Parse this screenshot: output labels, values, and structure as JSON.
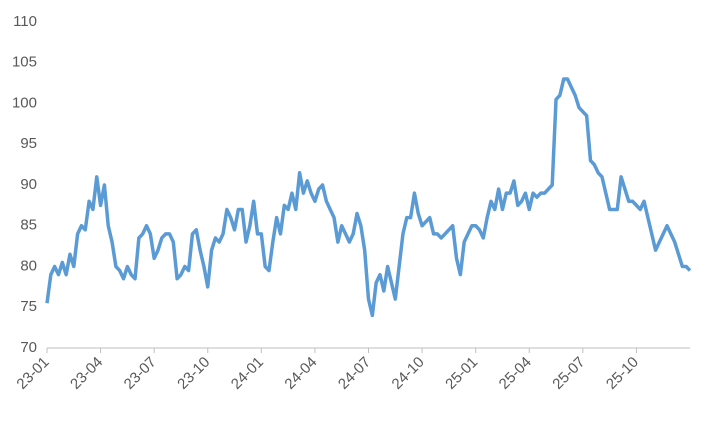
{
  "chart_data": {
    "type": "line",
    "categories": [
      "23-01",
      null,
      null,
      null,
      null,
      null,
      null,
      null,
      null,
      null,
      null,
      null,
      null,
      null,
      "23-04",
      null,
      null,
      null,
      null,
      null,
      null,
      null,
      null,
      null,
      null,
      null,
      null,
      null,
      "23-07",
      null,
      null,
      null,
      null,
      null,
      null,
      null,
      null,
      null,
      null,
      null,
      null,
      null,
      "23-10",
      null,
      null,
      null,
      null,
      null,
      null,
      null,
      null,
      null,
      null,
      null,
      null,
      null,
      "24-01",
      null,
      null,
      null,
      null,
      null,
      null,
      null,
      null,
      null,
      null,
      null,
      null,
      null,
      "24-04",
      null,
      null,
      null,
      null,
      null,
      null,
      null,
      null,
      null,
      null,
      null,
      null,
      null,
      "24-07",
      null,
      null,
      null,
      null,
      null,
      null,
      null,
      null,
      null,
      null,
      null,
      null,
      null,
      "24-10",
      null,
      null,
      null,
      null,
      null,
      null,
      null,
      null,
      null,
      null,
      null,
      null,
      null,
      "25-01",
      null,
      null,
      null,
      null,
      null,
      null,
      null,
      null,
      null,
      null,
      null,
      null,
      null,
      "25-04",
      null,
      null,
      null,
      null,
      null,
      null,
      null,
      null,
      null,
      null,
      null,
      null,
      null,
      "25-07",
      null,
      null,
      null,
      null,
      null,
      null,
      null,
      null,
      null,
      null,
      null,
      null,
      null,
      "25-10",
      null,
      null,
      null,
      null,
      null,
      null,
      null,
      null,
      null,
      null,
      null,
      null,
      null,
      null
    ],
    "values": [
      75.5,
      79,
      80,
      79,
      80.5,
      79,
      81.5,
      80,
      84,
      85,
      84.5,
      88,
      87,
      91,
      87.5,
      90,
      85,
      83,
      80,
      79.5,
      78.5,
      80,
      79,
      78.5,
      83.5,
      84,
      85,
      84,
      81,
      82,
      83.5,
      84,
      84,
      83,
      78.5,
      79,
      80,
      79.5,
      84,
      84.5,
      82,
      80,
      77.5,
      82,
      83.5,
      83,
      84,
      87,
      86,
      84.5,
      87,
      87,
      83,
      85,
      88,
      84,
      84,
      80,
      79.5,
      83,
      86,
      84,
      87.5,
      87,
      89,
      87,
      91.5,
      89,
      90.5,
      89,
      88,
      89.5,
      90,
      88,
      87,
      86,
      83,
      85,
      84,
      83,
      84,
      86.5,
      85,
      82,
      76,
      74,
      78,
      79,
      77,
      80,
      78,
      76,
      80,
      84,
      86,
      86,
      89,
      86.5,
      85,
      85.5,
      86,
      84,
      84,
      83.5,
      84,
      84.5,
      85,
      81,
      79,
      83,
      84,
      85,
      85,
      84.5,
      83.5,
      86,
      88,
      87,
      89.5,
      87,
      89,
      89,
      90.5,
      87.5,
      88,
      89,
      87,
      89,
      88.5,
      89,
      89,
      89.5,
      90,
      100.5,
      101,
      103,
      103,
      102,
      101,
      99.5,
      99,
      98.5,
      93,
      92.5,
      91.5,
      91,
      89,
      87,
      87,
      87,
      91,
      89.5,
      88,
      88,
      87.5,
      87,
      88,
      86,
      84,
      82,
      83,
      84,
      85,
      84,
      83,
      81.5,
      80,
      80,
      79.5
    ],
    "color": "#5b9bd5",
    "ylim": [
      70,
      110
    ],
    "yticks": [
      70,
      75,
      80,
      85,
      90,
      95,
      100,
      105,
      110
    ],
    "grid": false
  }
}
